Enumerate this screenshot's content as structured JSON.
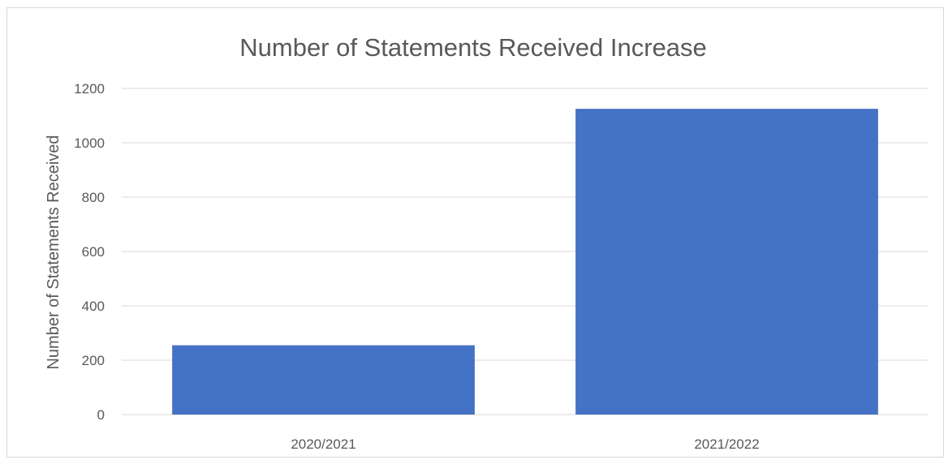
{
  "chart_data": {
    "type": "bar",
    "title": "Number of Statements Received Increase",
    "xlabel": "",
    "ylabel": "Number of Statements Received",
    "categories": [
      "2020/2021",
      "2021/2022"
    ],
    "values": [
      255,
      1125
    ],
    "ylim": [
      0,
      1200
    ],
    "yticks": [
      0,
      200,
      400,
      600,
      800,
      1000,
      1200
    ],
    "grid": true,
    "legend": "none",
    "bar_color": "#4472c4",
    "grid_color": "#d9d9d9",
    "text_color": "#595959"
  }
}
